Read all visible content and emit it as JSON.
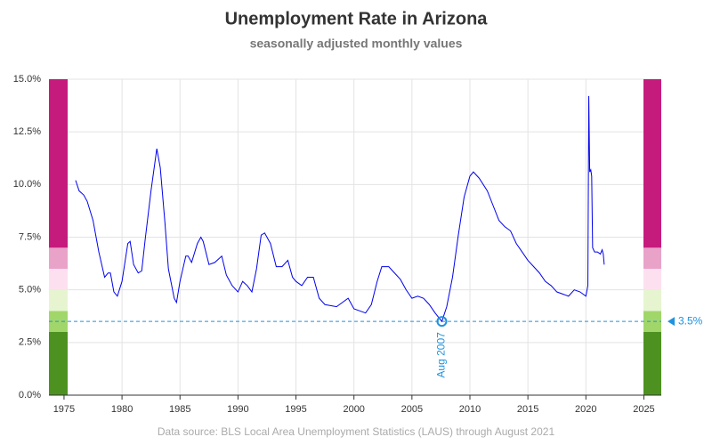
{
  "chart_data": {
    "type": "line",
    "title": "Unemployment Rate in Arizona",
    "subtitle": "seasonally adjusted monthly values",
    "source": "Data source: BLS Local Area Unemployment Statistics (LAUS) through August 2021",
    "color": "#0000ee",
    "x": [
      1976.0,
      1976.3,
      1976.7,
      1977.0,
      1977.5,
      1978.0,
      1978.5,
      1978.8,
      1979.0,
      1979.3,
      1979.6,
      1980.0,
      1980.5,
      1980.7,
      1981.0,
      1981.4,
      1981.7,
      1982.0,
      1982.5,
      1983.0,
      1983.3,
      1983.7,
      1984.0,
      1984.5,
      1984.7,
      1985.0,
      1985.5,
      1985.7,
      1986.0,
      1986.5,
      1986.8,
      1987.0,
      1987.5,
      1988.0,
      1988.6,
      1989.0,
      1989.5,
      1990.0,
      1990.4,
      1990.8,
      1991.2,
      1991.6,
      1992.0,
      1992.3,
      1992.8,
      1993.3,
      1993.8,
      1994.3,
      1994.7,
      1995.0,
      1995.5,
      1996.0,
      1996.5,
      1997.0,
      1997.5,
      1998.5,
      1999.0,
      1999.5,
      2000.0,
      2000.5,
      2001.0,
      2001.5,
      2002.0,
      2002.4,
      2003.0,
      2003.5,
      2004.0,
      2004.5,
      2005.0,
      2005.5,
      2006.0,
      2006.5,
      2007.0,
      2007.58,
      2008.0,
      2008.5,
      2009.0,
      2009.5,
      2010.0,
      2010.3,
      2010.8,
      2011.5,
      2012.0,
      2012.5,
      2013.0,
      2013.5,
      2014.0,
      2014.5,
      2015.0,
      2015.5,
      2016.0,
      2016.5,
      2017.0,
      2017.5,
      2018.0,
      2018.5,
      2019.0,
      2019.5,
      2020.0,
      2020.17,
      2020.25,
      2020.33,
      2020.42,
      2020.5,
      2020.58,
      2020.75,
      2021.0,
      2021.25,
      2021.4,
      2021.5,
      2021.58
    ],
    "values": [
      10.2,
      9.7,
      9.5,
      9.2,
      8.3,
      6.8,
      5.6,
      5.8,
      5.8,
      4.9,
      4.7,
      5.4,
      7.2,
      7.3,
      6.2,
      5.8,
      5.9,
      7.4,
      9.7,
      11.7,
      10.8,
      8.2,
      6.0,
      4.6,
      4.4,
      5.4,
      6.6,
      6.6,
      6.3,
      7.2,
      7.5,
      7.3,
      6.2,
      6.3,
      6.6,
      5.7,
      5.2,
      4.9,
      5.4,
      5.2,
      4.9,
      6.0,
      7.6,
      7.7,
      7.2,
      6.1,
      6.1,
      6.4,
      5.6,
      5.4,
      5.2,
      5.6,
      5.6,
      4.6,
      4.3,
      4.2,
      4.4,
      4.6,
      4.1,
      4.0,
      3.9,
      4.3,
      5.4,
      6.1,
      6.1,
      5.8,
      5.5,
      5.0,
      4.6,
      4.7,
      4.6,
      4.3,
      3.9,
      3.5,
      4.2,
      5.6,
      7.6,
      9.4,
      10.4,
      10.6,
      10.3,
      9.7,
      9.0,
      8.3,
      8.0,
      7.8,
      7.2,
      6.8,
      6.4,
      6.1,
      5.8,
      5.4,
      5.2,
      4.9,
      4.8,
      4.7,
      5.0,
      4.9,
      4.7,
      5.2,
      14.2,
      10.6,
      10.7,
      10.4,
      7.0,
      6.8,
      6.8,
      6.7,
      6.9,
      6.7,
      6.2
    ],
    "xlim": [
      1973.7,
      2026.5
    ],
    "ylim": [
      0,
      15
    ],
    "xticks": [
      1975,
      1980,
      1985,
      1990,
      1995,
      2000,
      2005,
      2010,
      2015,
      2020,
      2025
    ],
    "yticks": [
      {
        "value": 0,
        "label": "0.0%"
      },
      {
        "value": 2.5,
        "label": "2.5%"
      },
      {
        "value": 5,
        "label": "5.0%"
      },
      {
        "value": 7.5,
        "label": "7.5%"
      },
      {
        "value": 10,
        "label": "10.0%"
      },
      {
        "value": 12.5,
        "label": "12.5%"
      },
      {
        "value": 15,
        "label": "15.0%"
      }
    ],
    "grid": true,
    "bands": [
      {
        "from": 0,
        "to": 3,
        "color": "#4d9221"
      },
      {
        "from": 3,
        "to": 4,
        "color": "#a1d76a"
      },
      {
        "from": 4,
        "to": 5,
        "color": "#e6f5d0"
      },
      {
        "from": 5,
        "to": 6,
        "color": "#fde0ef"
      },
      {
        "from": 6,
        "to": 7,
        "color": "#e9a3c9"
      },
      {
        "from": 7,
        "to": 15,
        "color": "#c51b7d"
      }
    ],
    "reference_line": {
      "value": 3.5,
      "label": "3.5%",
      "color": "#1f93e0"
    },
    "annotation": {
      "x": 2007.58,
      "y": 3.5,
      "label": "Aug 2007"
    }
  }
}
